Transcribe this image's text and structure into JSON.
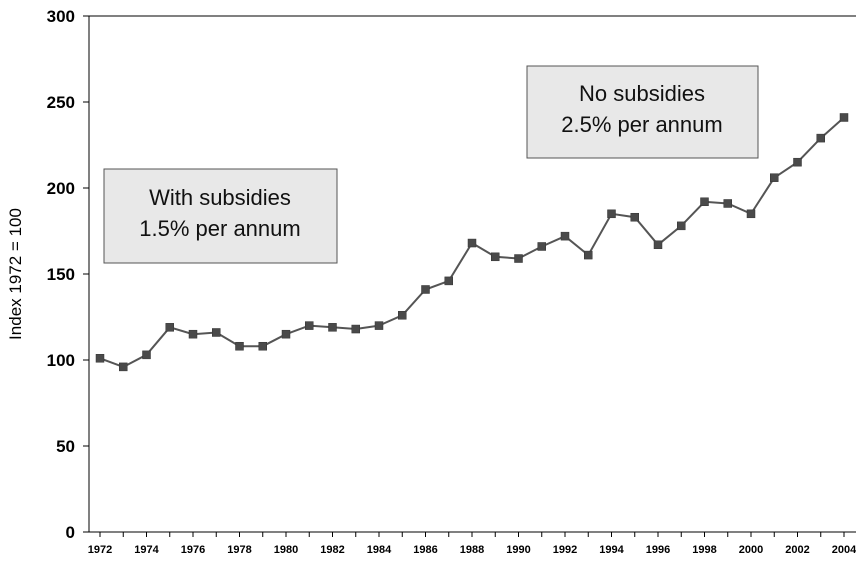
{
  "chart_data": {
    "type": "line",
    "title": "",
    "xlabel": "",
    "ylabel": "Index 1972 = 100",
    "ylim": [
      0,
      300
    ],
    "xlim": [
      1972,
      2004
    ],
    "yticks": [
      0,
      50,
      100,
      150,
      200,
      250,
      300
    ],
    "xticks": [
      1972,
      1974,
      1976,
      1978,
      1980,
      1982,
      1984,
      1986,
      1988,
      1990,
      1992,
      1994,
      1996,
      1998,
      2000,
      2002,
      2004
    ],
    "grid": false,
    "legend": "none",
    "colors": {
      "line": "#555555",
      "marker": "#4a4a4a",
      "annotation_fill": "#e8e8e8"
    },
    "series": [
      {
        "x": [
          1972,
          1973,
          1974,
          1975,
          1976,
          1977,
          1978,
          1979,
          1980,
          1981,
          1982,
          1983,
          1984,
          1985,
          1986,
          1987,
          1988,
          1989,
          1990,
          1991,
          1992,
          1993,
          1994,
          1995,
          1996,
          1997,
          1998,
          1999,
          2000,
          2001,
          2002,
          2003,
          2004
        ],
        "values": [
          101,
          96,
          103,
          119,
          115,
          116,
          108,
          108,
          115,
          120,
          119,
          118,
          120,
          126,
          141,
          146,
          168,
          160,
          159,
          166,
          172,
          161,
          185,
          183,
          167,
          178,
          192,
          191,
          185,
          206,
          215,
          229,
          241
        ]
      }
    ],
    "annotations": [
      {
        "lines": [
          "With subsidies",
          "1.5% per annum"
        ]
      },
      {
        "lines": [
          "No subsidies",
          "2.5% per annum"
        ]
      }
    ]
  }
}
